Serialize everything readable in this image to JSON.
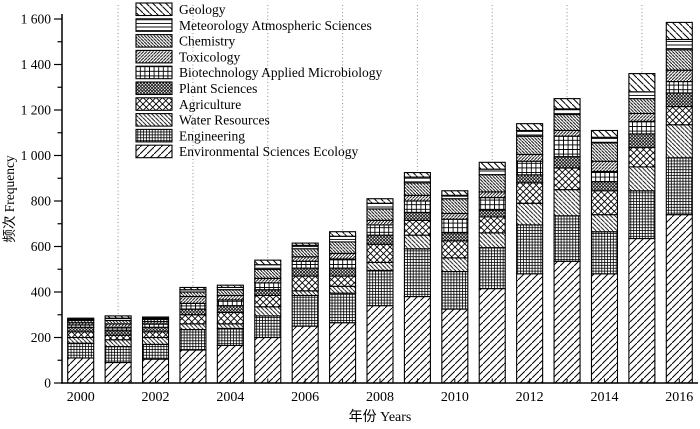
{
  "figure": {
    "type_note": "black-and-white hatched stacked bar chart (publication style)"
  },
  "chart_data": {
    "type": "bar",
    "stacked": true,
    "title": "",
    "xlabel": "年份 Years",
    "ylabel": "频次 Frequency",
    "ylim": [
      0,
      1600
    ],
    "y_major_step": 200,
    "y_minor_step": 100,
    "y_tick_labels": [
      "0",
      "200",
      "400",
      "600",
      "800",
      "1 000",
      "1 200",
      "1 400",
      "1 600"
    ],
    "categories": [
      2000,
      2001,
      2002,
      2003,
      2004,
      2005,
      2006,
      2007,
      2008,
      2009,
      2010,
      2011,
      2012,
      2013,
      2014,
      2015,
      2016
    ],
    "x_tick_labels": [
      "2000",
      "2002",
      "2004",
      "2006",
      "2008",
      "2010",
      "2012",
      "2014",
      "2016"
    ],
    "grid": "vertical dotted gridlines at odd years (2001,2003,2005,2007,2009,2011,2013,2015)",
    "legend_position": "top-left inside, no box",
    "legend_order": [
      "Geology",
      "Meteorology Atmospheric Sciences",
      "Chemistry",
      "Toxicology",
      "Biotechnology Applied Microbiology",
      "Plant Sciences",
      "Agriculture",
      "Water Resources",
      "Engineering",
      "Environmental Sciences Ecology"
    ],
    "series": [
      {
        "name": "Environmental Sciences Ecology",
        "pattern": "wide-forwardslash",
        "values": [
          110,
          90,
          105,
          145,
          165,
          200,
          250,
          265,
          340,
          380,
          325,
          415,
          480,
          535,
          480,
          635,
          740
        ]
      },
      {
        "name": "Engineering",
        "pattern": "fine-grid",
        "values": [
          65,
          70,
          65,
          90,
          75,
          95,
          135,
          130,
          155,
          210,
          165,
          180,
          215,
          200,
          185,
          210,
          250
        ]
      },
      {
        "name": "Water Resources",
        "pattern": "medium-backslash",
        "values": [
          25,
          30,
          30,
          25,
          20,
          40,
          20,
          30,
          35,
          60,
          60,
          65,
          95,
          115,
          75,
          105,
          145
        ]
      },
      {
        "name": "Agriculture",
        "pattern": "large-crosshatch",
        "values": [
          25,
          20,
          25,
          40,
          50,
          50,
          65,
          45,
          80,
          65,
          75,
          70,
          90,
          95,
          105,
          85,
          80
        ]
      },
      {
        "name": "Plant Sciences",
        "pattern": "dense-crosshatch",
        "values": [
          20,
          20,
          20,
          25,
          30,
          25,
          35,
          35,
          40,
          35,
          35,
          30,
          35,
          50,
          40,
          60,
          60
        ]
      },
      {
        "name": "Biotechnology Applied Microbiology",
        "pattern": "medium-grid",
        "values": [
          10,
          15,
          15,
          25,
          25,
          30,
          30,
          40,
          45,
          50,
          60,
          55,
          60,
          90,
          45,
          55,
          50
        ]
      },
      {
        "name": "Toxicology",
        "pattern": "dense-forwardslash",
        "values": [
          10,
          15,
          10,
          30,
          20,
          20,
          20,
          25,
          20,
          25,
          25,
          25,
          30,
          25,
          45,
          35,
          50
        ]
      },
      {
        "name": "Chemistry",
        "pattern": "dense-backslash",
        "values": [
          10,
          15,
          10,
          20,
          25,
          40,
          35,
          50,
          50,
          55,
          65,
          75,
          80,
          70,
          80,
          65,
          90
        ]
      },
      {
        "name": "Meteorology Atmospheric Sciences",
        "pattern": "horizontal-lines",
        "values": [
          5,
          10,
          5,
          10,
          10,
          20,
          15,
          25,
          25,
          25,
          15,
          25,
          25,
          25,
          25,
          30,
          45
        ]
      },
      {
        "name": "Geology",
        "pattern": "wide-backslash",
        "values": [
          5,
          10,
          5,
          10,
          10,
          20,
          10,
          20,
          20,
          20,
          20,
          30,
          30,
          45,
          30,
          80,
          75
        ]
      }
    ],
    "approx_totals": [
      285,
      295,
      290,
      420,
      430,
      540,
      615,
      665,
      810,
      925,
      845,
      970,
      1140,
      1250,
      1110,
      1360,
      1585
    ],
    "colors": {
      "ink": "#000000",
      "background": "#ffffff",
      "gridline": "#909090"
    }
  }
}
